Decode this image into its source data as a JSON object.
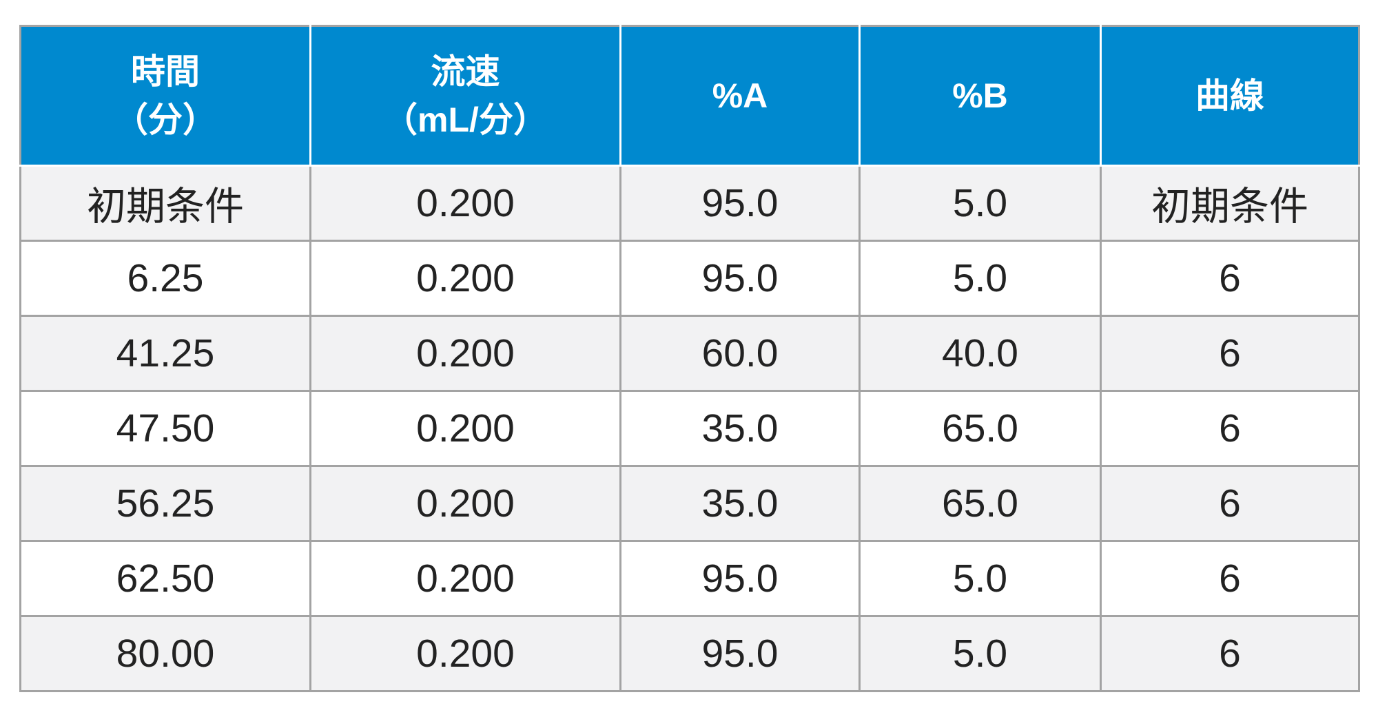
{
  "table": {
    "header": [
      [
        "時間",
        "（分）"
      ],
      [
        "流速",
        "（mL/分）"
      ],
      [
        "%A"
      ],
      [
        "%B"
      ],
      [
        "曲線"
      ]
    ],
    "rows": [
      [
        "初期条件",
        "0.200",
        "95.0",
        "5.0",
        "初期条件"
      ],
      [
        "6.25",
        "0.200",
        "95.0",
        "5.0",
        "6"
      ],
      [
        "41.25",
        "0.200",
        "60.0",
        "40.0",
        "6"
      ],
      [
        "47.50",
        "0.200",
        "35.0",
        "65.0",
        "6"
      ],
      [
        "56.25",
        "0.200",
        "35.0",
        "65.0",
        "6"
      ],
      [
        "62.50",
        "0.200",
        "95.0",
        "5.0",
        "6"
      ],
      [
        "80.00",
        "0.200",
        "95.0",
        "5.0",
        "6"
      ]
    ]
  }
}
